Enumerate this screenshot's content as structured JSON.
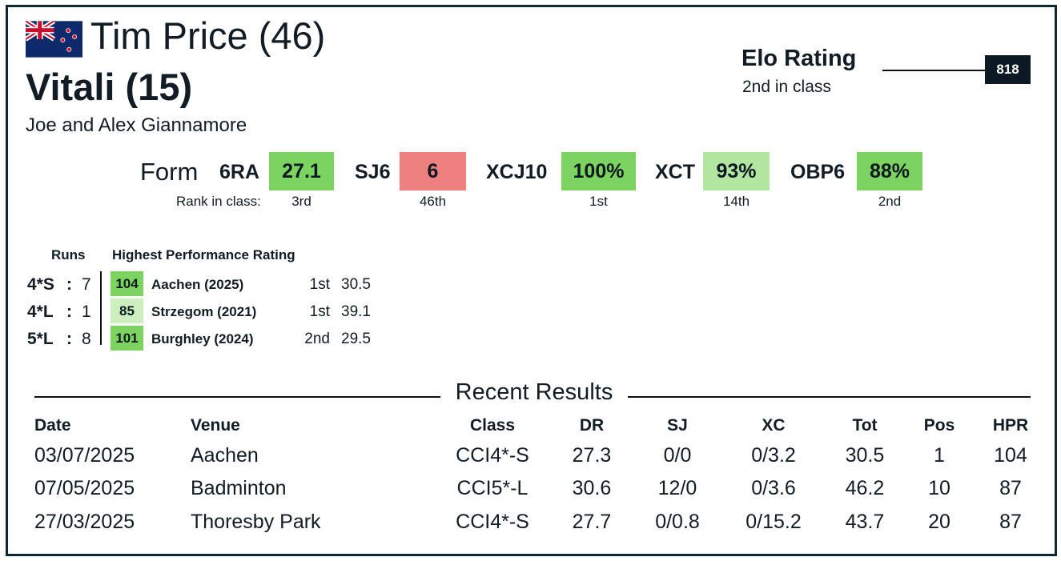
{
  "header": {
    "rider": "Tim Price (46)",
    "horse": "Vitali (15)",
    "owners": "Joe and Alex Giannamore",
    "flag": "new-zealand-flag"
  },
  "elo": {
    "title": "Elo Rating",
    "subtitle": "2nd in class",
    "value": "818"
  },
  "form": {
    "label": "Form",
    "rank_label": "Rank in class:",
    "items": [
      {
        "code": "6RA",
        "value": "27.1",
        "rank": "3rd",
        "color": "#7dd35f"
      },
      {
        "code": "SJ6",
        "value": "6",
        "rank": "46th",
        "color": "#ee8080"
      },
      {
        "code": "XCJ10",
        "value": "100%",
        "rank": "1st",
        "color": "#7dd35f"
      },
      {
        "code": "XCT",
        "value": "93%",
        "rank": "14th",
        "color": "#b3e6a0"
      },
      {
        "code": "OBP6",
        "value": "88%",
        "rank": "2nd",
        "color": "#7dd35f"
      }
    ]
  },
  "runs": {
    "runs_header": "Runs",
    "hpr_header": "Highest Performance Rating",
    "rows": [
      {
        "level": "4*S",
        "colon": ":",
        "count": "7",
        "hpr": "104",
        "event": "Aachen (2025)",
        "pos": "1st",
        "score": "30.5",
        "color": "#7dd35f"
      },
      {
        "level": "4*L",
        "colon": ":",
        "count": "1",
        "hpr": "85",
        "event": "Strzegom (2021)",
        "pos": "1st",
        "score": "39.1",
        "color": "#cdeebd"
      },
      {
        "level": "5*L",
        "colon": ":",
        "count": "8",
        "hpr": "101",
        "event": "Burghley (2024)",
        "pos": "2nd",
        "score": "29.5",
        "color": "#7dd35f"
      }
    ]
  },
  "recent": {
    "title": "Recent Results",
    "headers": [
      "Date",
      "Venue",
      "Class",
      "DR",
      "SJ",
      "XC",
      "Tot",
      "Pos",
      "HPR"
    ],
    "rows": [
      [
        "03/07/2025",
        "Aachen",
        "CCI4*-S",
        "27.3",
        "0/0",
        "0/3.2",
        "30.5",
        "1",
        "104"
      ],
      [
        "07/05/2025",
        "Badminton",
        "CCI5*-L",
        "30.6",
        "12/0",
        "0/3.6",
        "46.2",
        "10",
        "87"
      ],
      [
        "27/03/2025",
        "Thoresby Park",
        "CCI4*-S",
        "27.7",
        "0/0.8",
        "0/15.2",
        "43.7",
        "20",
        "87"
      ]
    ]
  }
}
